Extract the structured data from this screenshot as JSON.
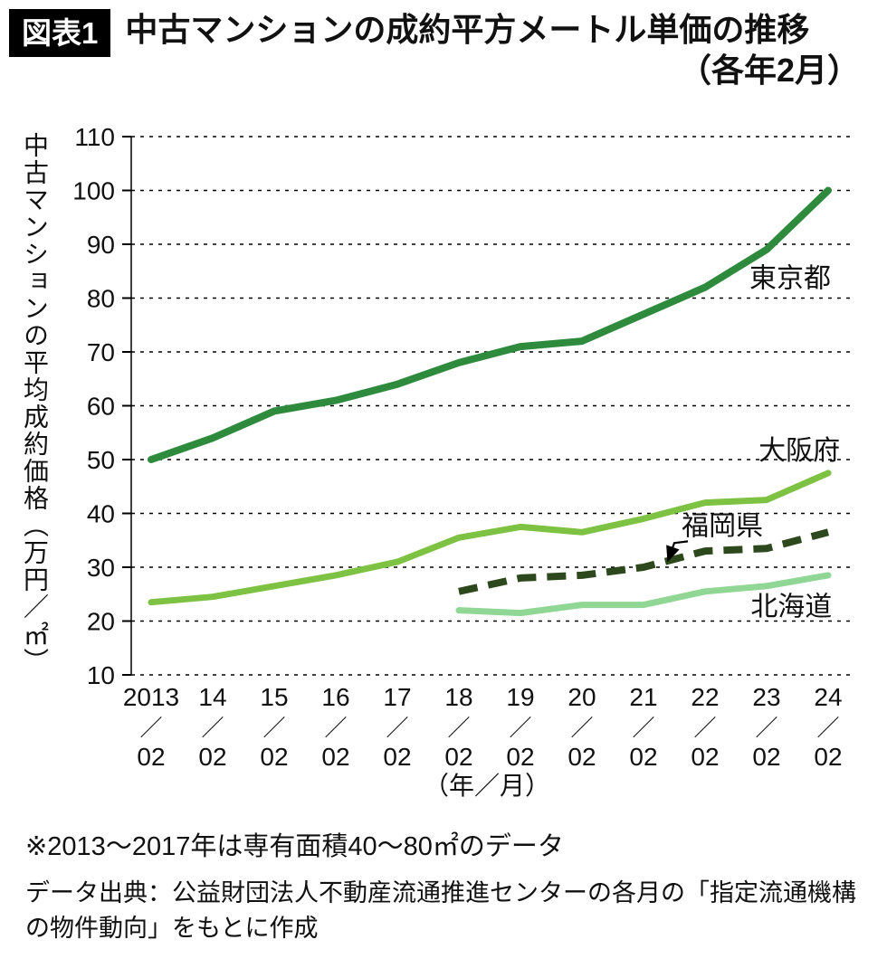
{
  "header": {
    "badge": "図表1",
    "title_line1": "中古マンションの成約平方メートル単価の推移",
    "title_line2": "（各年2月）"
  },
  "chart_data": {
    "type": "line",
    "title": "中古マンションの成約平方メートル単価の推移（各年2月）",
    "ylabel": "中古マンションの平均成約価格（万円／㎡）",
    "xlabel": "（年／月）",
    "ylim": [
      10,
      110
    ],
    "yticks": [
      110,
      100,
      90,
      80,
      70,
      60,
      50,
      40,
      30,
      20,
      10
    ],
    "grid": "dashed-horizontal",
    "legend_position": "inline-labels",
    "x_tick_years": [
      "2013",
      "14",
      "15",
      "16",
      "17",
      "18",
      "19",
      "20",
      "21",
      "22",
      "23",
      "24"
    ],
    "x_tick_slash": "／",
    "x_tick_month": "02",
    "series": [
      {
        "name": "東京都",
        "color": "#2e8b3d",
        "width": 8,
        "dash": null,
        "start_index": 0,
        "values": [
          50,
          54,
          59,
          61,
          64,
          68,
          71,
          72,
          77,
          82,
          89,
          100
        ],
        "label": {
          "xi": 9.72,
          "value": 82
        }
      },
      {
        "name": "大阪府",
        "color": "#7dc242",
        "width": 7,
        "dash": null,
        "start_index": 0,
        "values": [
          23.5,
          24.5,
          26.5,
          28.5,
          31,
          35.5,
          37.5,
          36.5,
          39,
          42,
          42.5,
          47.5
        ],
        "label": {
          "xi": 9.87,
          "value": 50
        }
      },
      {
        "name": "福岡県",
        "color": "#2e481d",
        "width": 8,
        "dash": "21 12",
        "start_index": 5,
        "values": [
          25.5,
          28,
          28.5,
          30,
          33,
          33.5,
          36.5
        ],
        "label": {
          "xi": 8.62,
          "value": 36
        }
      },
      {
        "name": "北海道",
        "color": "#90d694",
        "width": 7,
        "dash": null,
        "start_index": 5,
        "values": [
          22,
          21.5,
          23,
          23,
          25.5,
          26.5,
          28.5
        ],
        "label": {
          "xi": 9.74,
          "value": 21
        }
      }
    ],
    "annotation_arrow": {
      "series": "福岡県",
      "points": [
        [
          8.72,
          34.8
        ],
        [
          8.5,
          34.5
        ],
        [
          8.4,
          31.3
        ]
      ]
    }
  },
  "footnotes": {
    "note1": "※2013～2017年は専有面積40～80㎡のデータ",
    "source": "データ出典：公益財団法人不動産流通推進センターの各月の「指定流通機構の物件動向」をもとに作成"
  }
}
